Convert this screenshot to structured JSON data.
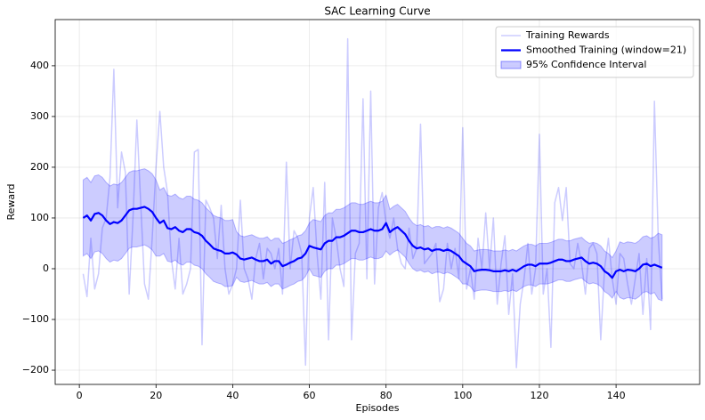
{
  "chart_data": {
    "type": "line",
    "title": "SAC Learning Curve",
    "xlabel": "Episodes",
    "ylabel": "Reward",
    "xlim": [
      -6.3,
      161.8
    ],
    "ylim": [
      -228,
      491
    ],
    "xticks": [
      0,
      20,
      40,
      60,
      80,
      100,
      120,
      140
    ],
    "yticks": [
      {
        "value": -200,
        "label": "−200"
      },
      {
        "value": -100,
        "label": "−100"
      },
      0,
      100,
      200,
      300,
      400
    ],
    "grid": true,
    "legend": "upper right",
    "x": [
      1,
      2,
      3,
      4,
      5,
      6,
      7,
      8,
      9,
      10,
      11,
      12,
      13,
      14,
      15,
      16,
      17,
      18,
      19,
      20,
      21,
      22,
      23,
      24,
      25,
      26,
      27,
      28,
      29,
      30,
      31,
      32,
      33,
      34,
      35,
      36,
      37,
      38,
      39,
      40,
      41,
      42,
      43,
      44,
      45,
      46,
      47,
      48,
      49,
      50,
      51,
      52,
      53,
      54,
      55,
      56,
      57,
      58,
      59,
      60,
      61,
      62,
      63,
      64,
      65,
      66,
      67,
      68,
      69,
      70,
      71,
      72,
      73,
      74,
      75,
      76,
      77,
      78,
      79,
      80,
      81,
      82,
      83,
      84,
      85,
      86,
      87,
      88,
      89,
      90,
      91,
      92,
      93,
      94,
      95,
      96,
      97,
      98,
      99,
      100,
      101,
      102,
      103,
      104,
      105,
      106,
      107,
      108,
      109,
      110,
      111,
      112,
      113,
      114,
      115,
      116,
      117,
      118,
      119,
      120,
      121,
      122,
      123,
      124,
      125,
      126,
      127,
      128,
      129,
      130,
      131,
      132,
      133,
      134,
      135,
      136,
      137,
      138,
      139,
      140,
      141,
      142,
      143,
      144,
      145,
      146,
      147,
      148,
      149,
      150,
      151,
      152
    ],
    "series": [
      {
        "name": "Training Rewards",
        "color": "#0000ff",
        "values": [
          -10,
          -55,
          60,
          -40,
          -10,
          80,
          100,
          180,
          393,
          120,
          230,
          190,
          -50,
          100,
          293,
          130,
          -30,
          -60,
          60,
          200,
          310,
          200,
          150,
          20,
          -40,
          60,
          -50,
          -30,
          0,
          230,
          235,
          -150,
          135,
          120,
          100,
          20,
          125,
          0,
          -50,
          -30,
          0,
          135,
          0,
          -20,
          -60,
          20,
          50,
          -20,
          40,
          30,
          0,
          40,
          -50,
          210,
          0,
          75,
          60,
          30,
          -190,
          100,
          160,
          30,
          -60,
          170,
          -140,
          100,
          60,
          0,
          -35,
          453,
          -140,
          30,
          50,
          335,
          -20,
          350,
          -30,
          120,
          150,
          90,
          60,
          100,
          40,
          10,
          0,
          80,
          20,
          40,
          285,
          10,
          20,
          30,
          50,
          -65,
          -40,
          50,
          0,
          40,
          -20,
          278,
          -40,
          0,
          -60,
          60,
          0,
          110,
          0,
          100,
          -70,
          10,
          65,
          -90,
          -10,
          -195,
          -70,
          -20,
          50,
          -50,
          0,
          265,
          -50,
          0,
          -155,
          130,
          160,
          95,
          160,
          10,
          0,
          50,
          10,
          -50,
          40,
          50,
          30,
          -140,
          0,
          60,
          -20,
          -70,
          30,
          20,
          -30,
          -70,
          -20,
          30,
          -90,
          20,
          -120,
          330,
          60,
          -60
        ]
      },
      {
        "name": "Smoothed Training (window=21)",
        "color": "#0000ff",
        "values": [
          100,
          105,
          95,
          108,
          110,
          105,
          95,
          88,
          92,
          90,
          95,
          105,
          115,
          118,
          118,
          120,
          122,
          118,
          112,
          100,
          90,
          95,
          80,
          78,
          82,
          75,
          72,
          78,
          78,
          72,
          70,
          65,
          55,
          48,
          40,
          37,
          35,
          30,
          30,
          32,
          28,
          20,
          18,
          20,
          22,
          18,
          15,
          15,
          18,
          10,
          15,
          15,
          5,
          8,
          12,
          15,
          20,
          22,
          30,
          45,
          42,
          40,
          38,
          50,
          55,
          55,
          62,
          62,
          65,
          70,
          75,
          75,
          72,
          72,
          75,
          78,
          75,
          75,
          78,
          90,
          72,
          78,
          82,
          75,
          68,
          55,
          45,
          40,
          42,
          38,
          40,
          35,
          38,
          38,
          35,
          38,
          35,
          30,
          25,
          15,
          10,
          5,
          -5,
          -3,
          -2,
          -2,
          -3,
          -5,
          -5,
          -5,
          -3,
          -5,
          -2,
          -5,
          0,
          5,
          8,
          8,
          5,
          10,
          10,
          10,
          12,
          15,
          18,
          18,
          15,
          15,
          18,
          20,
          22,
          15,
          10,
          12,
          10,
          5,
          -5,
          -10,
          -18,
          -5,
          -2,
          -5,
          -2,
          -3,
          -5,
          0,
          8,
          10,
          5,
          8,
          5,
          2
        ]
      },
      {
        "name": "95% Confidence Interval",
        "color": "#0000ff",
        "upper": [
          175,
          180,
          170,
          183,
          185,
          180,
          170,
          163,
          167,
          165,
          170,
          180,
          190,
          193,
          193,
          195,
          197,
          193,
          187,
          175,
          155,
          160,
          145,
          143,
          147,
          140,
          137,
          143,
          143,
          137,
          135,
          130,
          120,
          113,
          105,
          102,
          100,
          95,
          95,
          97,
          73,
          65,
          63,
          65,
          67,
          63,
          60,
          60,
          63,
          55,
          60,
          60,
          50,
          53,
          57,
          60,
          65,
          67,
          75,
          90,
          97,
          95,
          93,
          105,
          110,
          110,
          117,
          117,
          120,
          125,
          130,
          130,
          127,
          127,
          130,
          133,
          130,
          130,
          133,
          145,
          117,
          123,
          127,
          120,
          113,
          100,
          90,
          85,
          87,
          83,
          85,
          80,
          83,
          83,
          80,
          83,
          80,
          75,
          70,
          60,
          50,
          45,
          35,
          37,
          38,
          38,
          37,
          35,
          35,
          35,
          37,
          35,
          38,
          35,
          40,
          45,
          48,
          48,
          45,
          50,
          50,
          50,
          52,
          55,
          58,
          58,
          55,
          55,
          58,
          60,
          62,
          55,
          50,
          52,
          50,
          45,
          35,
          30,
          22,
          35,
          53,
          50,
          53,
          52,
          50,
          55,
          63,
          65,
          60,
          63,
          70,
          67
        ],
        "lower": [
          25,
          30,
          20,
          33,
          35,
          30,
          20,
          13,
          17,
          15,
          20,
          30,
          40,
          43,
          43,
          45,
          47,
          43,
          37,
          25,
          25,
          30,
          15,
          13,
          17,
          10,
          7,
          13,
          13,
          7,
          5,
          0,
          -10,
          -17,
          -25,
          -28,
          -30,
          -35,
          -35,
          -33,
          -17,
          -25,
          -27,
          -25,
          -23,
          -27,
          -30,
          -30,
          -27,
          -35,
          -30,
          -30,
          -40,
          -37,
          -33,
          -30,
          -25,
          -23,
          -15,
          0,
          -13,
          -15,
          -17,
          -5,
          0,
          0,
          7,
          7,
          10,
          15,
          20,
          20,
          17,
          17,
          20,
          23,
          20,
          20,
          23,
          35,
          27,
          33,
          37,
          30,
          23,
          10,
          0,
          -5,
          -3,
          -7,
          -5,
          -10,
          -7,
          -7,
          -10,
          -7,
          -10,
          -15,
          -20,
          -30,
          -30,
          -35,
          -45,
          -43,
          -42,
          -42,
          -43,
          -45,
          -45,
          -45,
          -43,
          -45,
          -42,
          -45,
          -40,
          -35,
          -32,
          -32,
          -35,
          -30,
          -30,
          -30,
          -28,
          -25,
          -22,
          -22,
          -25,
          -25,
          -22,
          -20,
          -18,
          -25,
          -30,
          -28,
          -30,
          -35,
          -45,
          -50,
          -58,
          -45,
          -57,
          -60,
          -57,
          -58,
          -60,
          -55,
          -47,
          -45,
          -50,
          -47,
          -60,
          -63
        ]
      }
    ]
  }
}
